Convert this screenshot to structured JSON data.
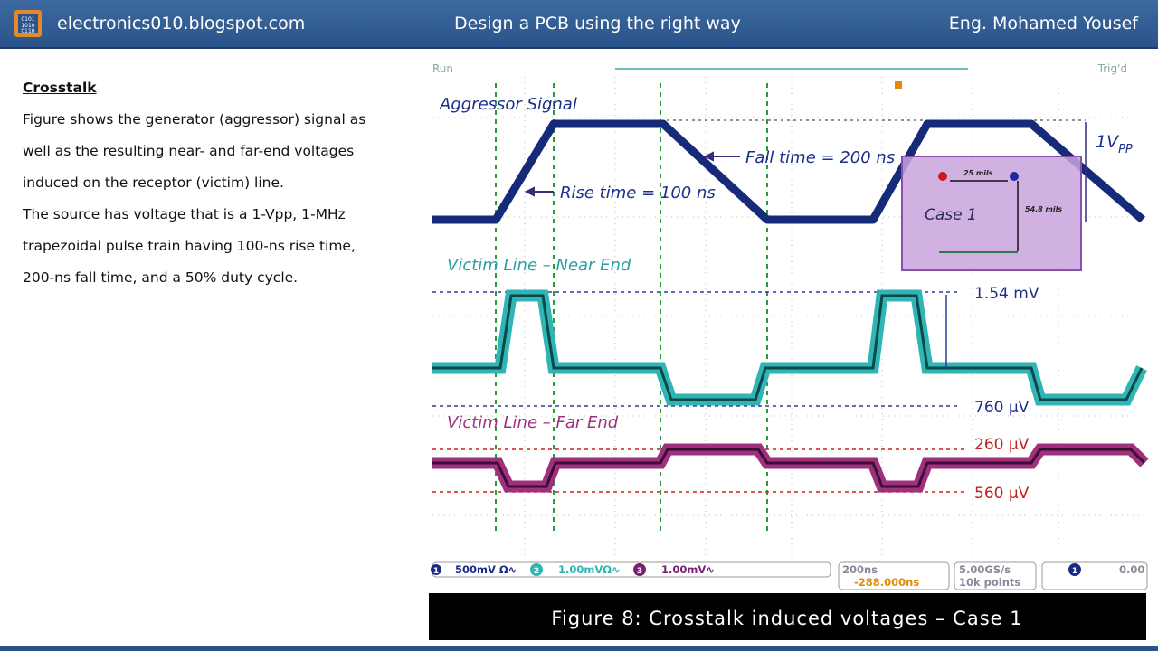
{
  "header": {
    "site": "electronics010.blogspot.com",
    "title": "Design a PCB using the right way",
    "author": "Eng. Mohamed Yousef"
  },
  "body": {
    "heading": "Crosstalk",
    "lines": [
      "Figure shows the generator (aggressor) signal as",
      "well as the resulting near- and far-end voltages",
      "induced on the receptor (victim) line.",
      "The source has voltage that is a 1-Vpp, 1-MHz",
      "trapezoidal pulse train having 100-ns rise time,",
      "200-ns fall time, and a 50% duty cycle."
    ]
  },
  "figure": {
    "status_left": "Run",
    "status_right": "Trig'd",
    "aggressor": "Aggressor Signal",
    "rise": "Rise time = 100 ns",
    "fall": "Fall time = 200 ns",
    "vpp": "1V",
    "vpp_sub": "PP",
    "case": "Case 1",
    "spacing": "25 mils",
    "height": "54.8 mils",
    "near": "Victim Line – Near End",
    "near_high": "1.54 mV",
    "near_low": "760 µV",
    "far": "Victim Line – Far End",
    "far_high": "260 µV",
    "far_low": "560 µV",
    "readouts": {
      "ch1": "1",
      "ch1_scale": "500mV Ω∿",
      "ch2": "2",
      "ch2_scale": "1.00mVΩ∿",
      "ch3": "3",
      "ch3_scale": "1.00mV∿",
      "timebase": "200ns",
      "delay": "-288.000ns",
      "rate": "5.00GS/s",
      "points": "10k points",
      "trig_ch": "1",
      "trig_level": "0.00"
    },
    "caption": "Figure 8: Crosstalk induced voltages – Case 1"
  }
}
